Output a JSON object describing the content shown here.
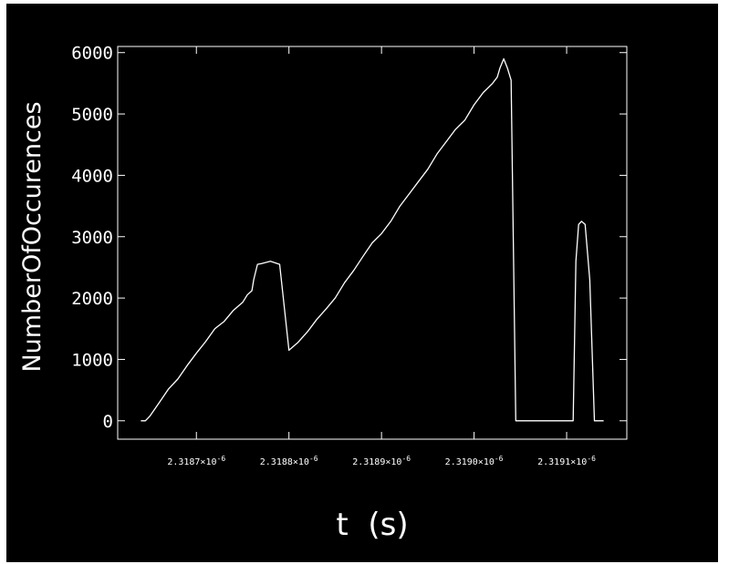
{
  "chart_data": {
    "type": "line",
    "xlabel": "t  (s)",
    "ylabel": "NumberOfOccurences",
    "xlim": [
      2.318615e-06,
      2.319165e-06
    ],
    "ylim": [
      -300,
      6100
    ],
    "grid": false,
    "y_ticks": [
      0,
      1000,
      2000,
      3000,
      4000,
      5000,
      6000
    ],
    "y_tick_labels": [
      "0",
      "1000",
      "2000",
      "3000",
      "4000",
      "5000",
      "6000"
    ],
    "x_ticks": [
      2.3187e-06,
      2.3188e-06,
      2.3189e-06,
      2.319e-06,
      2.3191e-06
    ],
    "x_tick_labels": [
      {
        "mantissa": "2.3187",
        "exp": "-6"
      },
      {
        "mantissa": "2.3188",
        "exp": "-6"
      },
      {
        "mantissa": "2.3189",
        "exp": "-6"
      },
      {
        "mantissa": "2.3190",
        "exp": "-6"
      },
      {
        "mantissa": "2.3191",
        "exp": "-6"
      }
    ],
    "series": [
      {
        "color": "#ffffff",
        "x": [
          2.31864e-06,
          2.318645e-06,
          2.31865e-06,
          2.31866e-06,
          2.31867e-06,
          2.31868e-06,
          2.31869e-06,
          2.3187e-06,
          2.31871e-06,
          2.31872e-06,
          2.31873e-06,
          2.31874e-06,
          2.31875e-06,
          2.318755e-06,
          2.31876e-06,
          2.318762e-06,
          2.318766e-06,
          2.31877e-06,
          2.31878e-06,
          2.31879e-06,
          2.3188e-06,
          2.31881e-06,
          2.31882e-06,
          2.31883e-06,
          2.31884e-06,
          2.31885e-06,
          2.31886e-06,
          2.31887e-06,
          2.31888e-06,
          2.31889e-06,
          2.3189e-06,
          2.31891e-06,
          2.31892e-06,
          2.31893e-06,
          2.31894e-06,
          2.31895e-06,
          2.31896e-06,
          2.31897e-06,
          2.31898e-06,
          2.31899e-06,
          2.319e-06,
          2.31901e-06,
          2.31902e-06,
          2.319025e-06,
          2.319028e-06,
          2.319032e-06,
          2.319036e-06,
          2.31904e-06,
          2.319045e-06,
          2.319055e-06,
          2.319065e-06,
          2.319075e-06,
          2.319085e-06,
          2.319093e-06,
          2.319098e-06,
          2.319103e-06,
          2.319107e-06,
          2.31911e-06,
          2.319113e-06,
          2.319116e-06,
          2.31912e-06,
          2.319125e-06,
          2.31913e-06,
          2.319135e-06,
          2.31914e-06
        ],
        "y": [
          0,
          0,
          80,
          300,
          520,
          680,
          900,
          1100,
          1290,
          1500,
          1620,
          1800,
          1930,
          2050,
          2120,
          2300,
          2550,
          2560,
          2600,
          2550,
          1150,
          1280,
          1450,
          1650,
          1820,
          2000,
          2250,
          2450,
          2680,
          2900,
          3050,
          3250,
          3500,
          3700,
          3900,
          4100,
          4350,
          4550,
          4750,
          4900,
          5150,
          5350,
          5500,
          5600,
          5750,
          5900,
          5750,
          5550,
          0,
          0,
          0,
          0,
          0,
          0,
          0,
          0,
          0,
          2600,
          3200,
          3250,
          3200,
          2300,
          0,
          0,
          0
        ]
      }
    ]
  }
}
